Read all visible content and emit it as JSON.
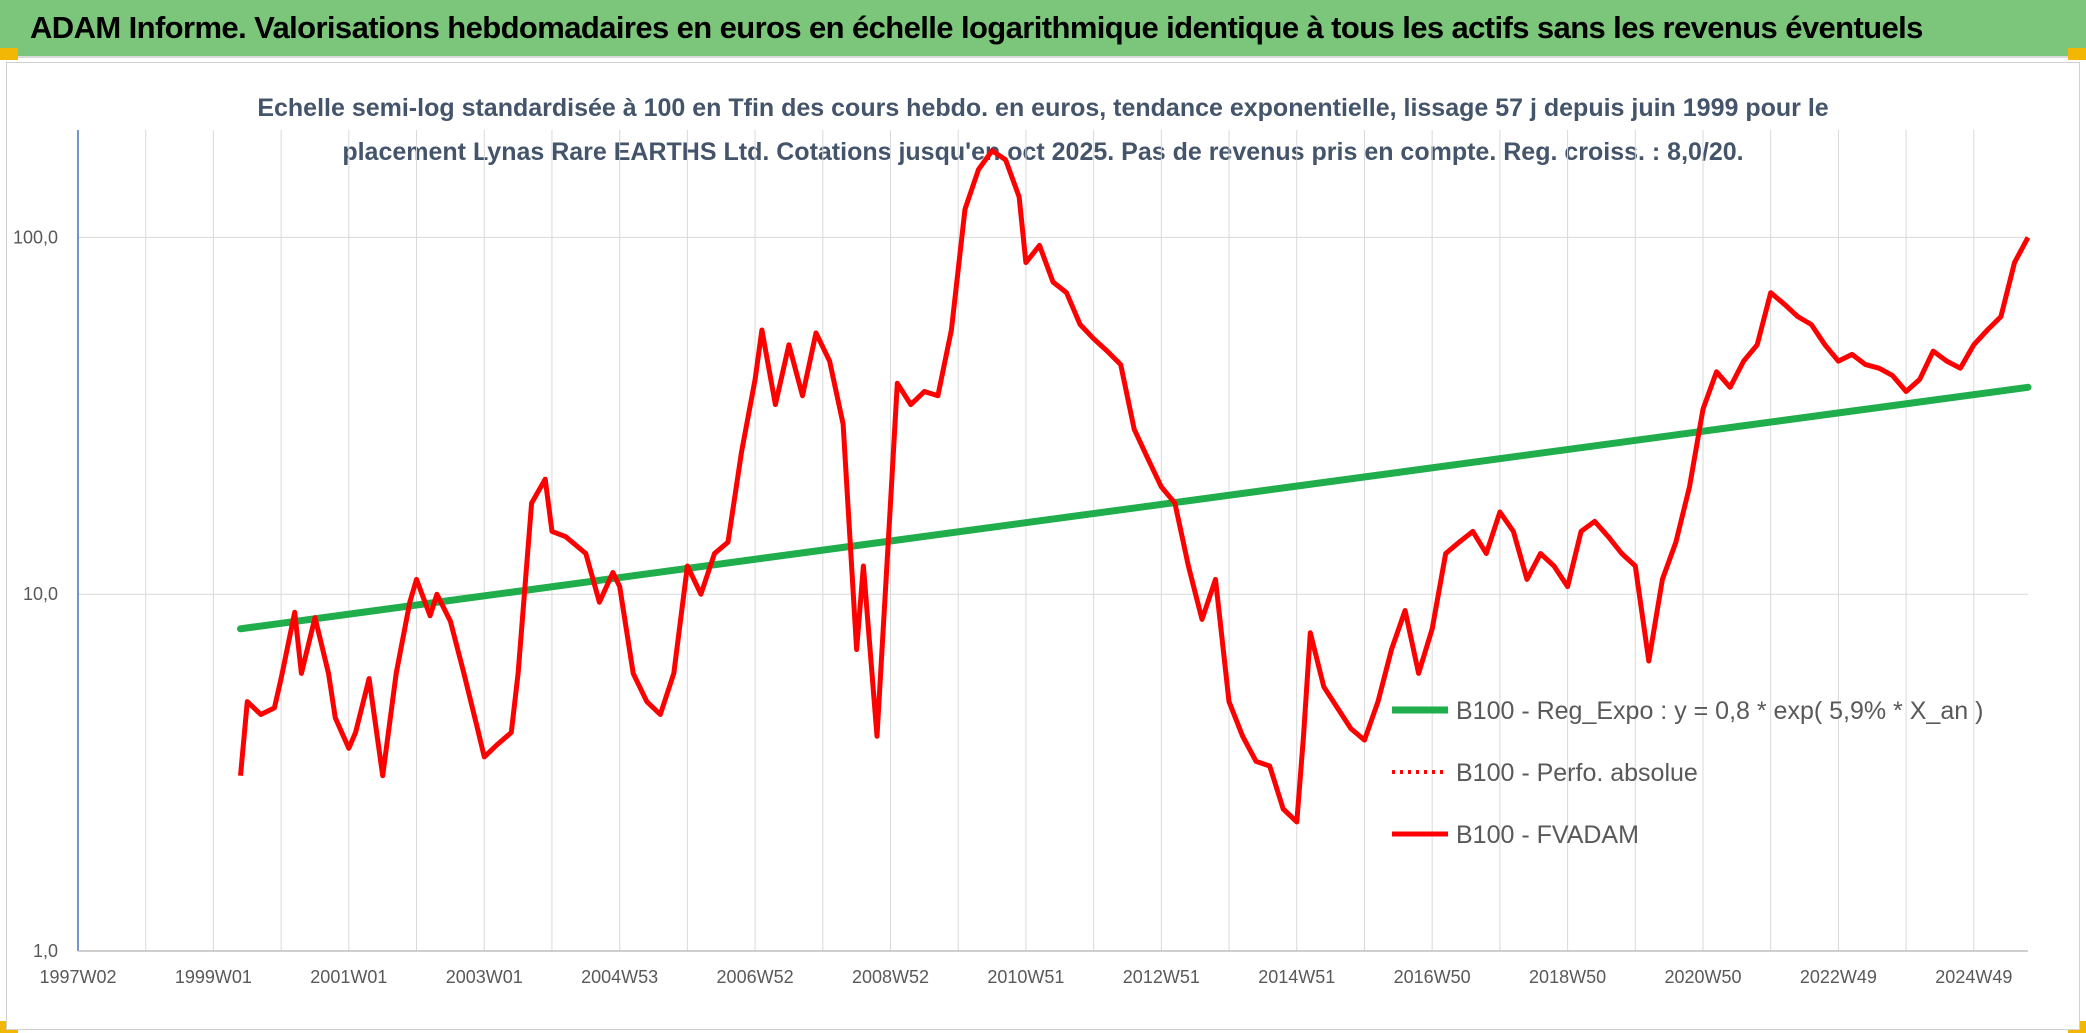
{
  "header": {
    "title": "ADAM Informe. Valorisations hebdomadaires en euros en échelle logarithmique identique à tous les actifs sans les revenus éventuels"
  },
  "colors": {
    "header_bg": "#7bc67b",
    "series_red": "#ff0000",
    "trend_green": "#1fae4b",
    "grid": "#d9d9d9",
    "axis_text": "#595959",
    "title_text": "#44546a"
  },
  "chart_data": {
    "type": "line",
    "title_line1": "Echelle semi-log standardisée à 100 en Tfin des cours hebdo. en euros, tendance exponentielle, lissage 57 j depuis juin 1999 pour le",
    "title_line2": "placement Lynas Rare EARTHS Ltd. Cotations jusqu'en oct 2025. Pas de revenus pris en compte. Reg. croiss. : 8,0/20.",
    "yscale": "log",
    "ylim": [
      1,
      200
    ],
    "xlim": [
      1997.0,
      2025.8
    ],
    "y_ticks": [
      {
        "value": 1,
        "label": "1,0"
      },
      {
        "value": 10,
        "label": "10,0"
      },
      {
        "value": 100,
        "label": "100,0"
      }
    ],
    "x_ticks": [
      {
        "value": 1997.0,
        "label": "1997W02"
      },
      {
        "value": 1999.0,
        "label": "1999W01"
      },
      {
        "value": 2001.0,
        "label": "2001W01"
      },
      {
        "value": 2003.0,
        "label": "2003W01"
      },
      {
        "value": 2005.0,
        "label": "2004W53"
      },
      {
        "value": 2007.0,
        "label": "2006W52"
      },
      {
        "value": 2009.0,
        "label": "2008W52"
      },
      {
        "value": 2011.0,
        "label": "2010W51"
      },
      {
        "value": 2013.0,
        "label": "2012W51"
      },
      {
        "value": 2015.0,
        "label": "2014W51"
      },
      {
        "value": 2017.0,
        "label": "2016W50"
      },
      {
        "value": 2019.0,
        "label": "2018W50"
      },
      {
        "value": 2021.0,
        "label": "2020W50"
      },
      {
        "value": 2023.0,
        "label": "2022W49"
      },
      {
        "value": 2025.0,
        "label": "2024W49"
      }
    ],
    "series": [
      {
        "name": "B100 - Reg_Expo : y = 0,8 * exp( 5,9% *  X_an )",
        "style": "trend",
        "x": [
          1999.4,
          2025.8
        ],
        "values": [
          8.0,
          38.0
        ]
      },
      {
        "name": "B100 - Perfo. absolue",
        "style": "dotted",
        "x": [],
        "values": []
      },
      {
        "name": "B100 - FVADAM",
        "style": "solid",
        "x": [
          1999.4,
          1999.5,
          1999.7,
          1999.9,
          2000.0,
          2000.2,
          2000.3,
          2000.5,
          2000.7,
          2000.8,
          2001.0,
          2001.1,
          2001.3,
          2001.5,
          2001.7,
          2001.9,
          2002.0,
          2002.2,
          2002.3,
          2002.5,
          2002.7,
          2002.9,
          2003.0,
          2003.2,
          2003.4,
          2003.5,
          2003.7,
          2003.9,
          2004.0,
          2004.2,
          2004.5,
          2004.7,
          2004.9,
          2005.0,
          2005.2,
          2005.4,
          2005.6,
          2005.8,
          2006.0,
          2006.2,
          2006.4,
          2006.6,
          2006.8,
          2007.0,
          2007.1,
          2007.3,
          2007.5,
          2007.7,
          2007.9,
          2008.1,
          2008.3,
          2008.5,
          2008.6,
          2008.8,
          2009.0,
          2009.1,
          2009.3,
          2009.5,
          2009.7,
          2009.9,
          2010.1,
          2010.3,
          2010.5,
          2010.7,
          2010.9,
          2011.0,
          2011.2,
          2011.4,
          2011.6,
          2011.8,
          2012.0,
          2012.2,
          2012.4,
          2012.6,
          2012.8,
          2013.0,
          2013.2,
          2013.4,
          2013.6,
          2013.8,
          2014.0,
          2014.2,
          2014.4,
          2014.6,
          2014.8,
          2015.0,
          2015.1,
          2015.2,
          2015.4,
          2015.6,
          2015.8,
          2016.0,
          2016.2,
          2016.4,
          2016.6,
          2016.8,
          2017.0,
          2017.2,
          2017.4,
          2017.6,
          2017.8,
          2018.0,
          2018.2,
          2018.4,
          2018.6,
          2018.8,
          2019.0,
          2019.2,
          2019.4,
          2019.6,
          2019.8,
          2020.0,
          2020.2,
          2020.4,
          2020.6,
          2020.8,
          2021.0,
          2021.2,
          2021.4,
          2021.6,
          2021.8,
          2022.0,
          2022.2,
          2022.4,
          2022.6,
          2022.8,
          2023.0,
          2023.2,
          2023.4,
          2023.6,
          2023.8,
          2024.0,
          2024.2,
          2024.4,
          2024.6,
          2024.8,
          2025.0,
          2025.2,
          2025.4,
          2025.6,
          2025.8
        ],
        "values": [
          3.1,
          5.0,
          4.6,
          4.8,
          5.8,
          8.9,
          6.0,
          8.6,
          6.0,
          4.5,
          3.7,
          4.1,
          5.8,
          3.1,
          6.0,
          9.5,
          11.0,
          8.7,
          10.0,
          8.4,
          6.0,
          4.2,
          3.5,
          3.8,
          4.1,
          6.0,
          18.0,
          21.0,
          15.0,
          14.5,
          13.0,
          9.5,
          11.5,
          10.5,
          6.0,
          5.0,
          4.6,
          6.0,
          12.0,
          10.0,
          13.0,
          14.0,
          25.0,
          40.0,
          55.0,
          34.0,
          50.0,
          36.0,
          54.0,
          45.0,
          30.0,
          7.0,
          12.0,
          4.0,
          18.0,
          39.0,
          34.0,
          37.0,
          36.0,
          55.0,
          120.0,
          155.0,
          175.0,
          165.0,
          130.0,
          85.0,
          95.0,
          75.0,
          70.0,
          57.0,
          52.0,
          48.0,
          44.0,
          29.0,
          24.0,
          20.0,
          18.0,
          12.0,
          8.5,
          11.0,
          5.0,
          4.0,
          3.4,
          3.3,
          2.5,
          2.3,
          4.0,
          7.8,
          5.5,
          4.8,
          4.2,
          3.9,
          5.0,
          7.0,
          9.0,
          6.0,
          8.0,
          13.0,
          14.0,
          15.0,
          13.0,
          17.0,
          15.0,
          11.0,
          13.0,
          12.0,
          10.5,
          15.0,
          16.0,
          14.5,
          13.0,
          12.0,
          6.5,
          11.0,
          14.0,
          20.0,
          33.0,
          42.0,
          38.0,
          45.0,
          50.0,
          70.0,
          65.0,
          60.0,
          57.0,
          50.0,
          45.0,
          47.0,
          44.0,
          43.0,
          41.0,
          37.0,
          40.0,
          48.0,
          45.0,
          43.0,
          50.0,
          55.0,
          60.0,
          85.0,
          100.0
        ]
      }
    ]
  }
}
